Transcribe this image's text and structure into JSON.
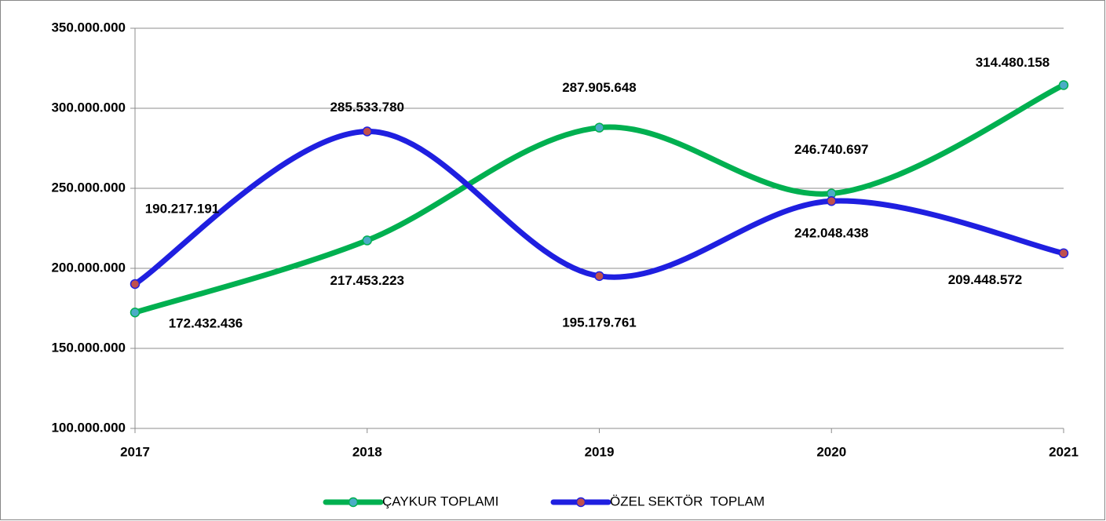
{
  "chart_data": {
    "type": "line",
    "categories": [
      "2017",
      "2018",
      "2019",
      "2020",
      "2021"
    ],
    "series": [
      {
        "name": "ÇAYKUR TOPLAMI",
        "color": "#00b050",
        "marker_color": "#4bacc6",
        "values": [
          172432436,
          217453223,
          287905648,
          246740697,
          314480158
        ],
        "value_labels": [
          "172.432.436",
          "217.453.223",
          "287.905.648",
          "246.740.697",
          "314.480.158"
        ]
      },
      {
        "name": "ÖZEL SEKTÖR  TOPLAM",
        "color": "#1f1fe0",
        "marker_color": "#c0504d",
        "values": [
          190217191,
          285533780,
          195179761,
          242048438,
          209448572
        ],
        "value_labels": [
          "190.217.191",
          "285.533.780",
          "195.179.761",
          "242.048.438",
          "209.448.572"
        ]
      }
    ],
    "ylim": [
      100000000,
      350000000
    ],
    "yticks": [
      {
        "value": 100000000,
        "label": "100.000.000"
      },
      {
        "value": 150000000,
        "label": "150.000.000"
      },
      {
        "value": 200000000,
        "label": "200.000.000"
      },
      {
        "value": 250000000,
        "label": "250.000.000"
      },
      {
        "value": 300000000,
        "label": "300.000.000"
      },
      {
        "value": 350000000,
        "label": "350.000.000"
      }
    ],
    "grid": true,
    "smooth": true,
    "legend": "bottom"
  }
}
